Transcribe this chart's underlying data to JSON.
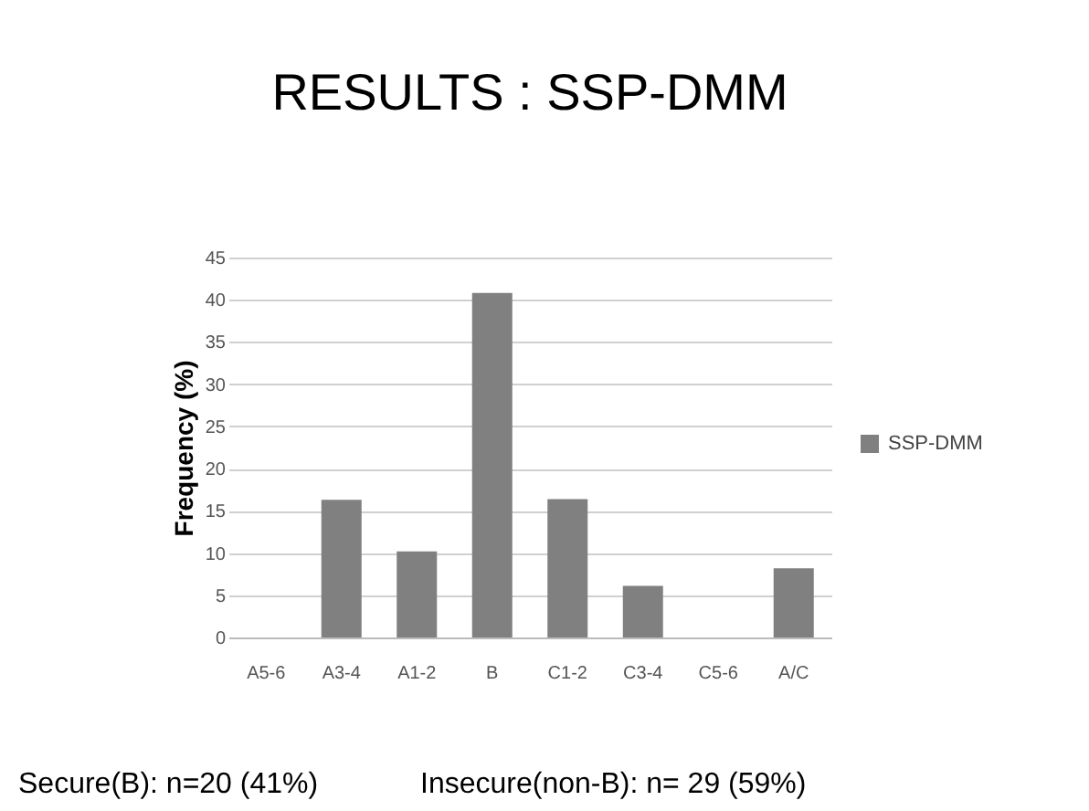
{
  "chart_data": {
    "type": "bar",
    "title": "RESULTS : SSP-DMM",
    "ylabel": "Frequency (%)",
    "categories": [
      "A5-6",
      "A3-4",
      "A1-2",
      "B",
      "C1-2",
      "C3-4",
      "C5-6",
      "A/C"
    ],
    "series": [
      {
        "name": "SSP-DMM",
        "color": "#808080",
        "values": [
          0,
          16.3,
          10.2,
          40.8,
          16.4,
          6.1,
          0,
          8.2
        ]
      }
    ],
    "ylim": [
      0,
      45
    ],
    "yticks": [
      0,
      5,
      10,
      15,
      20,
      25,
      30,
      35,
      40,
      45
    ],
    "grid": "y",
    "legend": "right",
    "annotations": [
      "Secure(B): n=20 (41%)",
      "Insecure(non-B): n= 29 (59%)"
    ]
  }
}
